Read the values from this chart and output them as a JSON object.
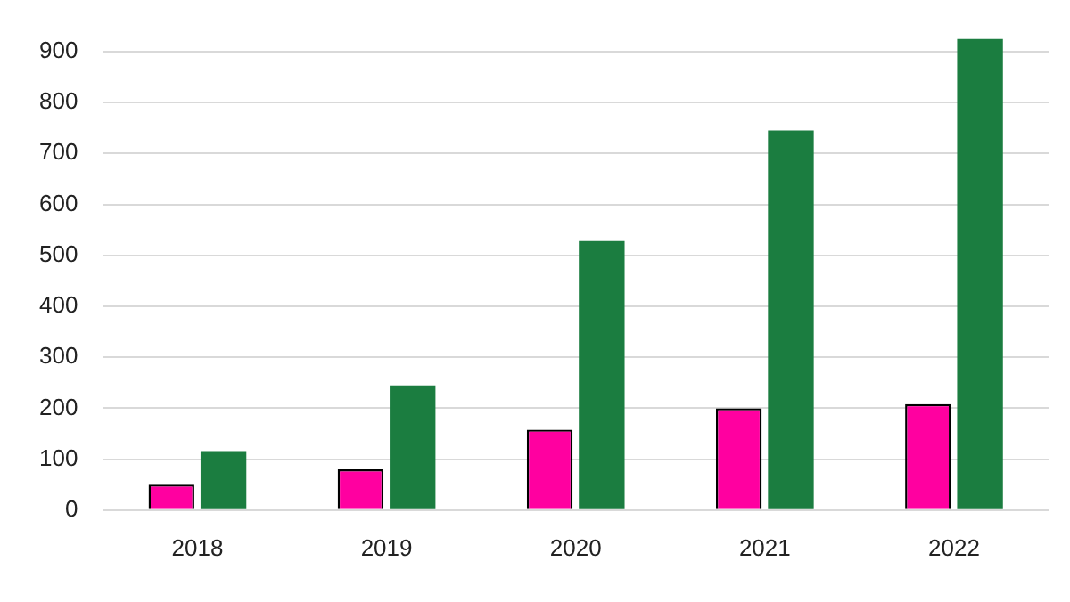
{
  "chart_data": {
    "type": "bar",
    "categories": [
      "2018",
      "2019",
      "2020",
      "2021",
      "2022"
    ],
    "series": [
      {
        "color": "#ff00a0",
        "values": [
          50,
          80,
          158,
          200,
          208
        ]
      },
      {
        "color": "#1b7d40",
        "values": [
          116,
          245,
          528,
          745,
          925
        ]
      }
    ],
    "ylim": [
      0,
      925
    ],
    "yticks": [
      0,
      100,
      200,
      300,
      400,
      500,
      600,
      700,
      800,
      900
    ],
    "grid": "y",
    "legend": false
  }
}
